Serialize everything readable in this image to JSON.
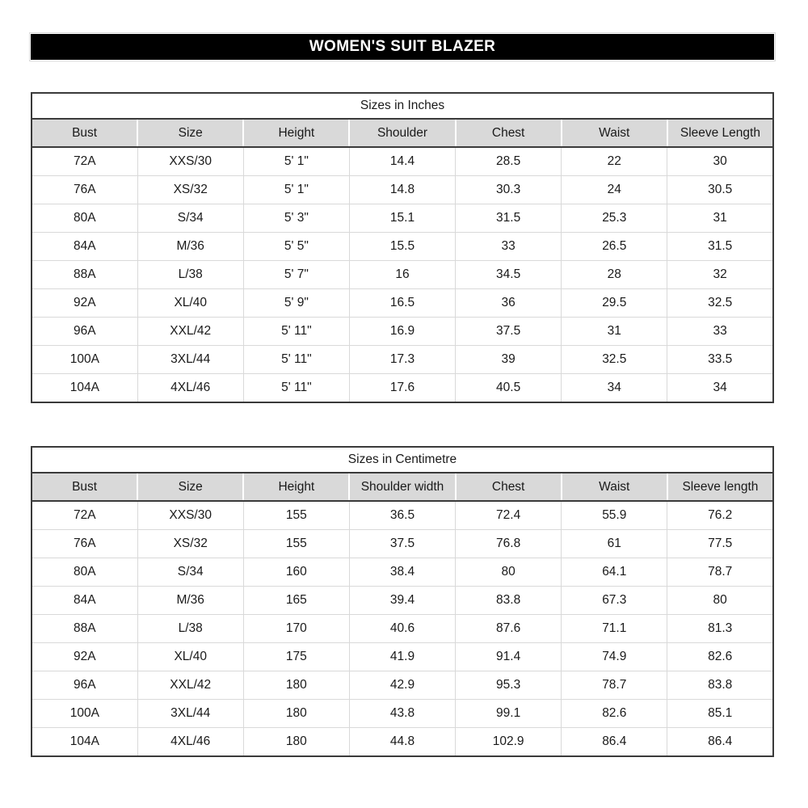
{
  "title": "WOMEN'S SUIT BLAZER",
  "tables": [
    {
      "caption": "Sizes in Inches",
      "columns": [
        "Bust",
        "Size",
        "Height",
        "Shoulder",
        "Chest",
        "Waist",
        "Sleeve Length"
      ],
      "rows": [
        [
          "72A",
          "XXS/30",
          "5' 1\"",
          "14.4",
          "28.5",
          "22",
          "30"
        ],
        [
          "76A",
          "XS/32",
          "5' 1\"",
          "14.8",
          "30.3",
          "24",
          "30.5"
        ],
        [
          "80A",
          "S/34",
          "5' 3\"",
          "15.1",
          "31.5",
          "25.3",
          "31"
        ],
        [
          "84A",
          "M/36",
          "5' 5\"",
          "15.5",
          "33",
          "26.5",
          "31.5"
        ],
        [
          "88A",
          "L/38",
          "5' 7\"",
          "16",
          "34.5",
          "28",
          "32"
        ],
        [
          "92A",
          "XL/40",
          "5' 9\"",
          "16.5",
          "36",
          "29.5",
          "32.5"
        ],
        [
          "96A",
          "XXL/42",
          "5' 11\"",
          "16.9",
          "37.5",
          "31",
          "33"
        ],
        [
          "100A",
          "3XL/44",
          "5' 11\"",
          "17.3",
          "39",
          "32.5",
          "33.5"
        ],
        [
          "104A",
          "4XL/46",
          "5' 11\"",
          "17.6",
          "40.5",
          "34",
          "34"
        ]
      ]
    },
    {
      "caption": "Sizes in Centimetre",
      "columns": [
        "Bust",
        "Size",
        "Height",
        "Shoulder width",
        "Chest",
        "Waist",
        "Sleeve length"
      ],
      "rows": [
        [
          "72A",
          "XXS/30",
          "155",
          "36.5",
          "72.4",
          "55.9",
          "76.2"
        ],
        [
          "76A",
          "XS/32",
          "155",
          "37.5",
          "76.8",
          "61",
          "77.5"
        ],
        [
          "80A",
          "S/34",
          "160",
          "38.4",
          "80",
          "64.1",
          "78.7"
        ],
        [
          "84A",
          "M/36",
          "165",
          "39.4",
          "83.8",
          "67.3",
          "80"
        ],
        [
          "88A",
          "L/38",
          "170",
          "40.6",
          "87.6",
          "71.1",
          "81.3"
        ],
        [
          "92A",
          "XL/40",
          "175",
          "41.9",
          "91.4",
          "74.9",
          "82.6"
        ],
        [
          "96A",
          "XXL/42",
          "180",
          "42.9",
          "95.3",
          "78.7",
          "83.8"
        ],
        [
          "100A",
          "3XL/44",
          "180",
          "43.8",
          "99.1",
          "82.6",
          "85.1"
        ],
        [
          "104A",
          "4XL/46",
          "180",
          "44.8",
          "102.9",
          "86.4",
          "86.4"
        ]
      ]
    }
  ],
  "colors": {
    "title_bar_bg": "#000000",
    "title_bar_text": "#ffffff",
    "header_bg": "#d9d9d9",
    "border_dark": "#3a3a3a",
    "grid_light": "#d9d9d9",
    "text": "#1a1a1a"
  }
}
